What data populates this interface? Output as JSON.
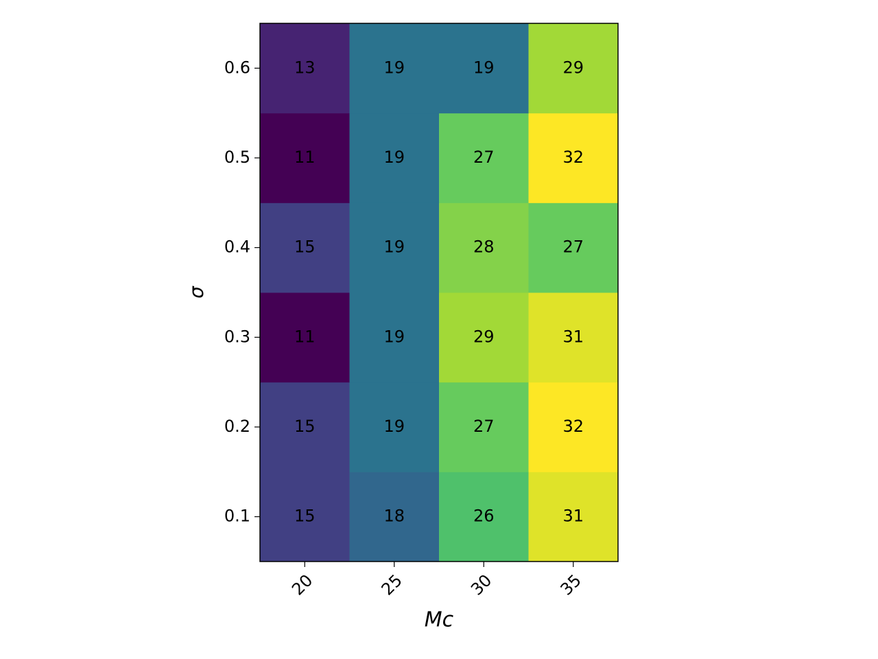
{
  "chart_data": {
    "type": "heatmap",
    "x_categories": [
      20,
      25,
      30,
      35
    ],
    "y_categories": [
      0.1,
      0.2,
      0.3,
      0.4,
      0.5,
      0.6
    ],
    "values": [
      [
        15,
        18,
        26,
        31
      ],
      [
        15,
        19,
        27,
        32
      ],
      [
        11,
        19,
        29,
        31
      ],
      [
        15,
        19,
        28,
        27
      ],
      [
        11,
        19,
        27,
        32
      ],
      [
        13,
        19,
        19,
        29
      ]
    ],
    "xlabel": "Mc",
    "ylabel": "σ",
    "colormap": "viridis"
  }
}
